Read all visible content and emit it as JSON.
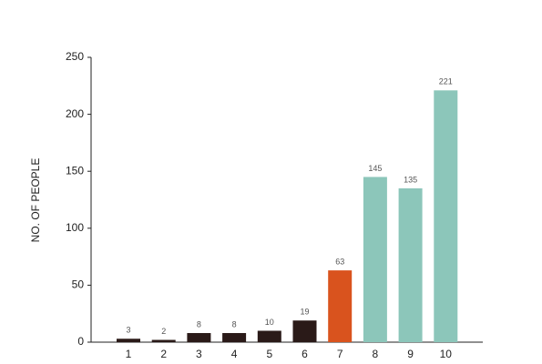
{
  "chart_data": {
    "type": "bar",
    "y_label": "NO. OF PEOPLE",
    "categories": [
      "1",
      "2",
      "3",
      "4",
      "5",
      "6",
      "7",
      "8",
      "9",
      "10"
    ],
    "values": [
      3,
      2,
      8,
      8,
      10,
      19,
      63,
      145,
      135,
      221
    ],
    "colors": [
      "#2a1a18",
      "#2a1a18",
      "#2a1a18",
      "#2a1a18",
      "#2a1a18",
      "#2a1a18",
      "#d9531e",
      "#8cc6ba",
      "#8cc6ba",
      "#8cc6ba"
    ],
    "ylim": [
      0,
      250
    ],
    "yticks": [
      0,
      50,
      100,
      150,
      200,
      250
    ],
    "grid": false
  }
}
